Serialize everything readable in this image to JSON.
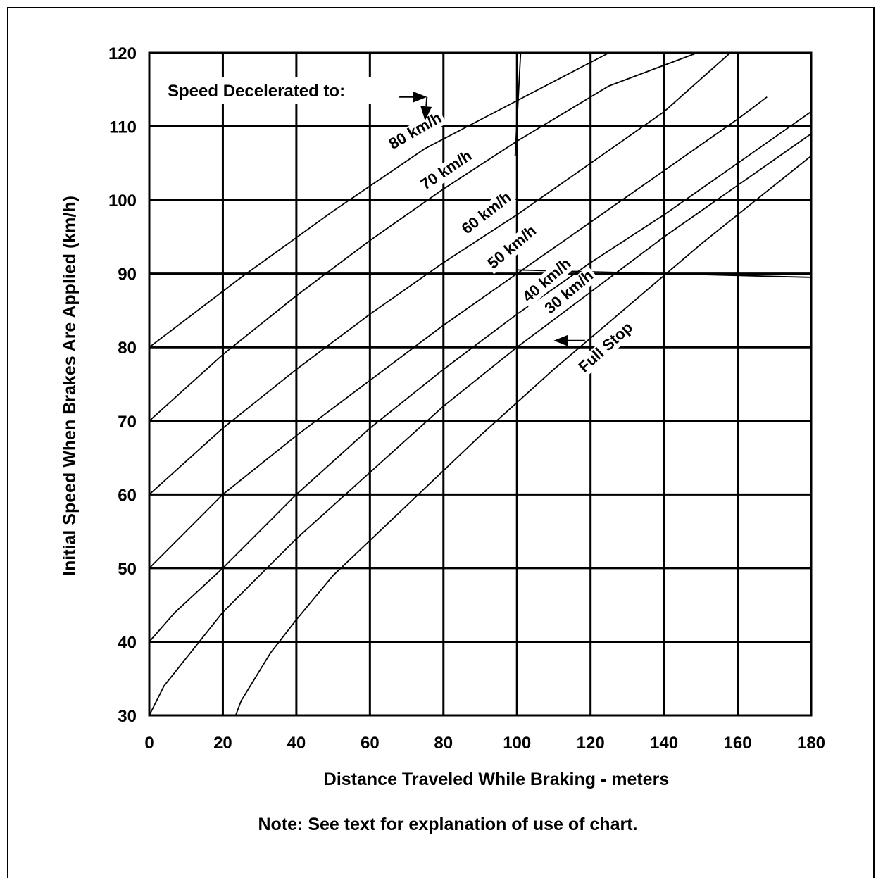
{
  "chart_data": {
    "type": "line",
    "title": "",
    "xlabel": "Distance Traveled While Braking - meters",
    "ylabel": "Initial Speed When Brakes Are Applied (km/h)",
    "note": "Note:  See text for explanation of use of chart.",
    "legend_title": "Speed Decelerated to:",
    "xlim": [
      0,
      180
    ],
    "ylim": [
      30,
      120
    ],
    "x_ticks": [
      0,
      20,
      40,
      60,
      80,
      100,
      120,
      140,
      160,
      180
    ],
    "y_ticks": [
      30,
      40,
      50,
      60,
      70,
      80,
      90,
      100,
      110,
      120
    ],
    "x_tick_labels": [
      "0",
      "20",
      "40",
      "60",
      "80",
      "100",
      "120",
      "140",
      "160",
      "180"
    ],
    "y_tick_labels": [
      "30",
      "40",
      "50",
      "60",
      "70",
      "80",
      "90",
      "100",
      "110",
      "120"
    ],
    "grid": true,
    "series": [
      {
        "name": "80 km/h",
        "x": [
          0,
          25,
          50,
          75,
          100,
          125
        ],
        "y": [
          80,
          89.5,
          98.5,
          107,
          113.5,
          120
        ]
      },
      {
        "name": "70 km/h",
        "x": [
          0,
          20,
          40,
          60,
          80,
          100,
          125,
          149
        ],
        "y": [
          70,
          79,
          87,
          94.5,
          101.5,
          108,
          115.5,
          120
        ]
      },
      {
        "name": "60 km/h",
        "x": [
          0,
          20,
          40,
          60,
          80,
          100,
          120,
          140,
          158
        ],
        "y": [
          60,
          69,
          77,
          84.5,
          91.5,
          98,
          105,
          112,
          120
        ]
      },
      {
        "name": "50 km/h",
        "x": [
          0,
          20,
          40,
          60,
          80,
          100,
          120,
          140,
          160,
          168
        ],
        "y": [
          50,
          60,
          68,
          75.5,
          83,
          90,
          97,
          104,
          111,
          114
        ]
      },
      {
        "name": "40 km/h",
        "x": [
          0,
          7,
          20,
          40,
          60,
          80,
          100,
          120,
          140,
          160,
          180
        ],
        "y": [
          40,
          44,
          50,
          60,
          69,
          77,
          84.5,
          91.5,
          98,
          105,
          112
        ]
      },
      {
        "name": "30 km/h",
        "x": [
          0,
          4,
          20,
          30,
          40,
          60,
          80,
          100,
          120,
          140,
          160,
          180
        ],
        "y": [
          30,
          34,
          44,
          49,
          54,
          63,
          72,
          80,
          87.5,
          95,
          102,
          109
        ]
      },
      {
        "name": "Full Stop",
        "x": [
          23.5,
          25,
          33,
          40,
          50,
          70,
          90,
          110,
          130,
          150,
          180
        ],
        "y": [
          30,
          32,
          38.5,
          43,
          49,
          58.5,
          68,
          77,
          85.5,
          94,
          106
        ]
      }
    ],
    "extra_lines": [
      {
        "x": [
          99.5,
          101
        ],
        "y": [
          106,
          120
        ]
      },
      {
        "x": [
          100,
          180
        ],
        "y": [
          110,
          110
        ]
      },
      {
        "x": [
          100,
          180
        ],
        "y": [
          90.5,
          89.5
        ]
      }
    ],
    "curve_labels": [
      {
        "text": "80 km/h",
        "x": 73,
        "y": 108.8,
        "angle": -30
      },
      {
        "text": "70 km/h",
        "x": 81.5,
        "y": 103.5,
        "angle": -34
      },
      {
        "text": "60 km/h",
        "x": 92.5,
        "y": 97.7,
        "angle": -38
      },
      {
        "text": "50 km/h",
        "x": 99.5,
        "y": 93.1,
        "angle": -40
      },
      {
        "text": "40 km/h",
        "x": 109,
        "y": 88.6,
        "angle": -41
      },
      {
        "text": "30 km/h",
        "x": 115,
        "y": 87,
        "angle": -40
      },
      {
        "text": "Full Stop",
        "x": 125,
        "y": 79.5,
        "angle": -42
      }
    ],
    "arrows": [
      {
        "from": [
          68,
          114
        ],
        "to": [
          75.5,
          114
        ]
      },
      {
        "from": [
          75.5,
          114
        ],
        "to": [
          75,
          110.8
        ]
      },
      {
        "from": [
          118.5,
          80.9
        ],
        "to": [
          110,
          80.9
        ]
      }
    ],
    "colors": {
      "line": "#000000",
      "background": "#ffffff"
    }
  }
}
